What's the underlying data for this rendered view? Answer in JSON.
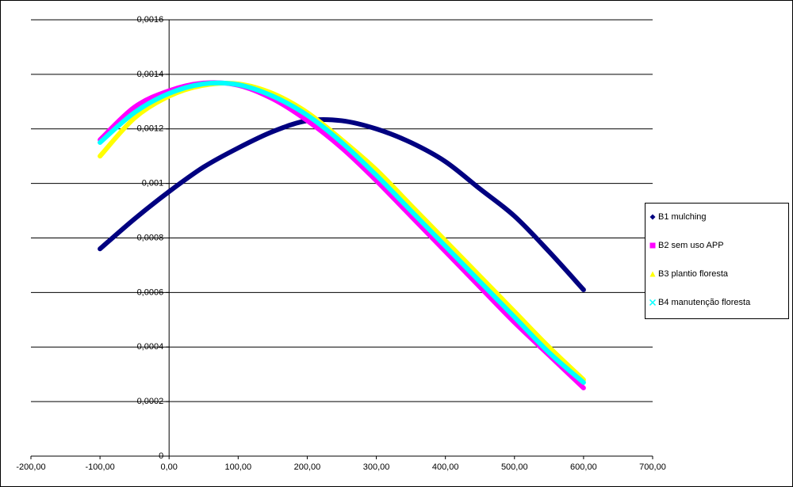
{
  "chart_data": {
    "type": "scatter",
    "xlim": [
      -200,
      700
    ],
    "xticks": [
      {
        "value": -200,
        "label": "-200,00"
      },
      {
        "value": -100,
        "label": "-100,00"
      },
      {
        "value": 0,
        "label": "0,00"
      },
      {
        "value": 100,
        "label": "100,00"
      },
      {
        "value": 200,
        "label": "200,00"
      },
      {
        "value": 300,
        "label": "300,00"
      },
      {
        "value": 400,
        "label": "400,00"
      },
      {
        "value": 500,
        "label": "500,00"
      },
      {
        "value": 600,
        "label": "600,00"
      },
      {
        "value": 700,
        "label": "700,00"
      }
    ],
    "ylim": [
      0,
      0.0016
    ],
    "yticks": [
      0,
      {
        "value": 0.0002,
        "label": "0,0002"
      },
      {
        "value": 0.0004,
        "label": "0,0004"
      },
      {
        "value": 0.0006,
        "label": "0,0006"
      },
      {
        "value": 0.0008,
        "label": "0,0008"
      },
      {
        "value": 0.001,
        "label": "0,001"
      },
      {
        "value": 0.0012,
        "label": "0,0012"
      },
      {
        "value": 0.0014,
        "label": "0,0014"
      },
      {
        "value": 0.0016,
        "label": "0,0016"
      }
    ],
    "grid": true,
    "legend": "right",
    "x": [
      -100,
      -50,
      0,
      50,
      100,
      150,
      200,
      250,
      300,
      350,
      400,
      450,
      500,
      550,
      600
    ],
    "series": [
      {
        "name": "B1 mulching",
        "color": "#000080",
        "marker": "diamond",
        "values": [
          0.00076,
          0.00087,
          0.00097,
          0.00106,
          0.00113,
          0.00119,
          0.00123,
          0.00123,
          0.0012,
          0.00115,
          0.00108,
          0.00098,
          0.00088,
          0.00075,
          0.00061
        ]
      },
      {
        "name": "B2 sem uso APP",
        "color": "#ff00ff",
        "marker": "square",
        "values": [
          0.00116,
          0.00128,
          0.00134,
          0.001368,
          0.00136,
          0.00131,
          0.00123,
          0.00113,
          0.00101,
          0.00088,
          0.00075,
          0.00062,
          0.00049,
          0.00037,
          0.00025
        ]
      },
      {
        "name": "B3 plantio floresta",
        "color": "#ffff00",
        "marker": "triangle",
        "values": [
          0.0011,
          0.00124,
          0.00132,
          0.00136,
          0.001365,
          0.00133,
          0.00126,
          0.00116,
          0.00105,
          0.00092,
          0.00079,
          0.00066,
          0.00053,
          0.0004,
          0.00028
        ]
      },
      {
        "name": "B4 manutenção floresta",
        "color": "#00ffff",
        "marker": "x",
        "values": [
          0.00115,
          0.00126,
          0.00133,
          0.001365,
          0.001362,
          0.00132,
          0.00125,
          0.00115,
          0.00103,
          0.0009,
          0.00077,
          0.00064,
          0.00051,
          0.00038,
          0.00027
        ]
      }
    ]
  }
}
